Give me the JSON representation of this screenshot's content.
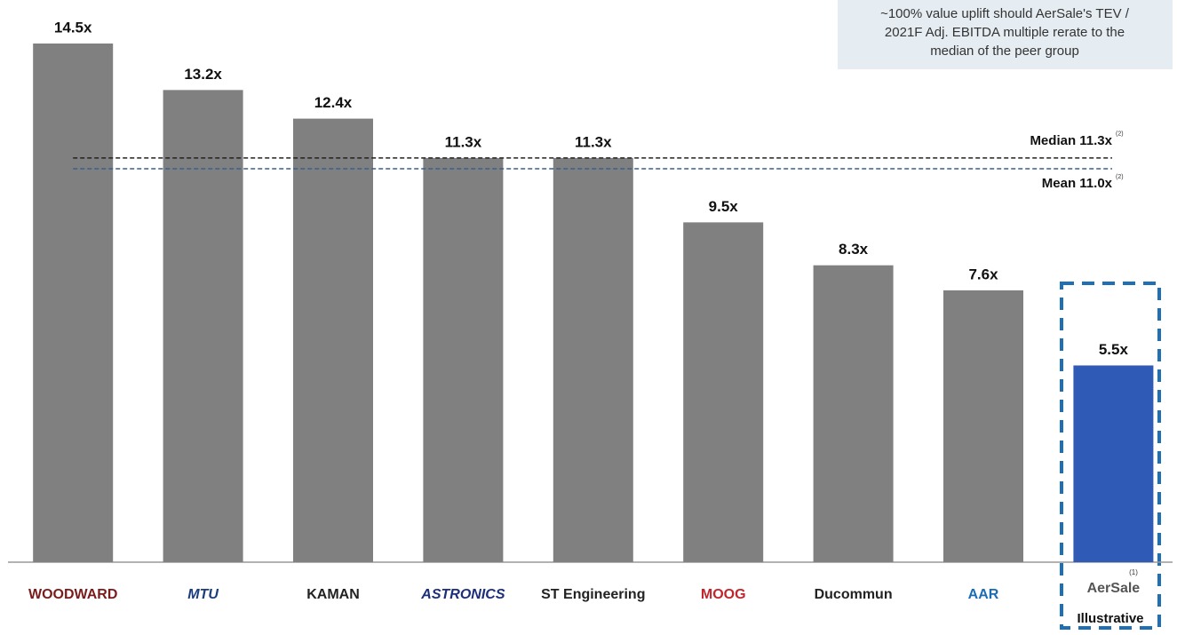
{
  "chart_data": {
    "type": "bar",
    "categories": [
      "WOODWARD",
      "MTU",
      "KAMAN",
      "ASTRONICS",
      "ST Engineering",
      "MOOG",
      "Ducommun",
      "AAR",
      "AerSale"
    ],
    "values": [
      14.5,
      13.2,
      12.4,
      11.3,
      11.3,
      9.5,
      8.3,
      7.6,
      5.5
    ],
    "value_labels": [
      "14.5x",
      "13.2x",
      "12.4x",
      "11.3x",
      "11.3x",
      "9.5x",
      "8.3x",
      "7.6x",
      "5.5x"
    ],
    "colors": [
      "#808080",
      "#808080",
      "#808080",
      "#808080",
      "#808080",
      "#808080",
      "#808080",
      "#808080",
      "#2f5bb7"
    ],
    "reference_lines": [
      {
        "label": "Median 11.3x",
        "note": "(2)",
        "value": 11.3,
        "color": "#222222"
      },
      {
        "label": "Mean 11.0x",
        "note": "(2)",
        "value": 11.0,
        "color": "#3a5f8f"
      }
    ],
    "highlight_note": "Illustrative",
    "highlight_footnote": "(1)",
    "callout": [
      "~100% value uplift should AerSale's TEV /",
      "2021F Adj. EBITDA multiple rerate to the",
      "median of the peer group"
    ]
  }
}
